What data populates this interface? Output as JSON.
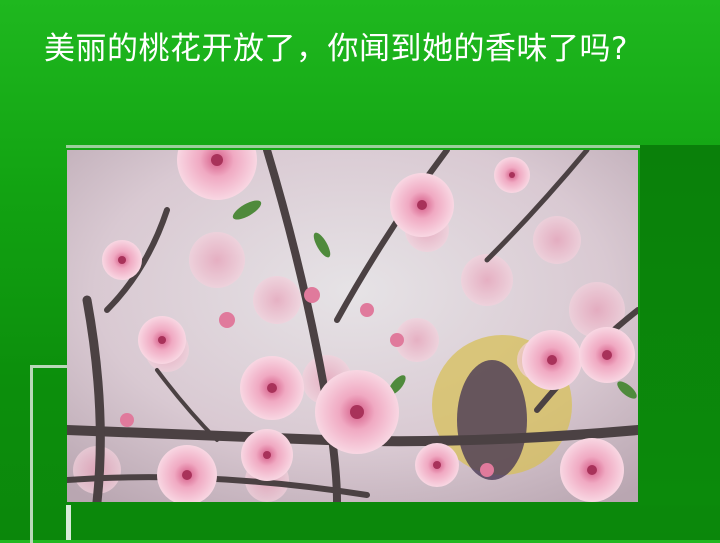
{
  "slide": {
    "title": "美丽的桃花开放了，你闻到她的香味了吗?"
  },
  "photo": {
    "subject": "peach-blossom-photo",
    "colors": {
      "sky": "#d6dadd",
      "branch": "#4a4040",
      "petal": "#f4c6d6",
      "petal_center": "#d0567e",
      "leaf": "#4f8a3c",
      "background": "#0c930c"
    }
  }
}
